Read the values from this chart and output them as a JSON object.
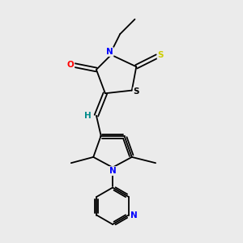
{
  "bg_color": "#ebebeb",
  "bond_color": "#000000",
  "atom_colors": {
    "N": "#0000ff",
    "O": "#ff0000",
    "S_thioxo": "#cccc00",
    "S_ring": "#000000",
    "H": "#008b8b",
    "C": "#000000"
  },
  "figsize": [
    3.0,
    3.0
  ],
  "dpi": 100
}
